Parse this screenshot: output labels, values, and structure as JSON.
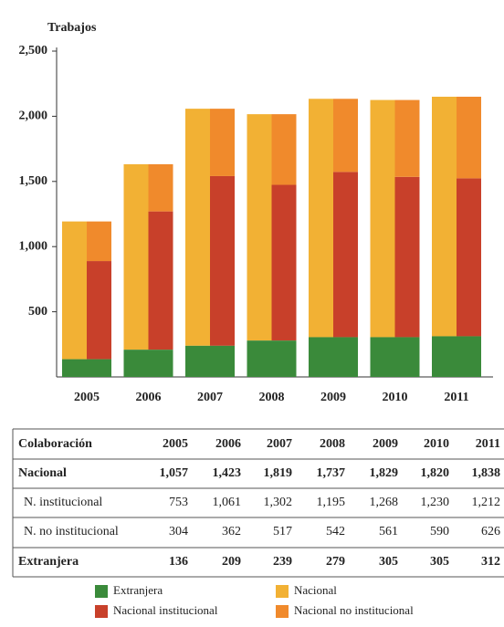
{
  "chart_data": {
    "type": "bar",
    "y_label": "Trabajos",
    "categories": [
      "2005",
      "2006",
      "2007",
      "2008",
      "2009",
      "2010",
      "2011"
    ],
    "series": [
      {
        "name": "Extranjera",
        "color": "#3a8a3a",
        "values": [
          136,
          209,
          239,
          279,
          305,
          305,
          312
        ]
      },
      {
        "name": "Nacional",
        "color": "#f2b134",
        "values": [
          1057,
          1423,
          1819,
          1737,
          1829,
          1820,
          1838
        ]
      },
      {
        "name": "Nacional institucional",
        "color": "#c8402a",
        "values": [
          753,
          1061,
          1302,
          1195,
          1268,
          1230,
          1212
        ]
      },
      {
        "name": "Nacional no institucional",
        "color": "#f08a2c",
        "values": [
          304,
          362,
          517,
          542,
          561,
          590,
          626
        ]
      }
    ],
    "ylim": [
      0,
      2500
    ],
    "yticks": [
      500,
      {
        "value": 1000,
        "label": "1,000"
      },
      {
        "value": 1500,
        "label": "1,500"
      },
      {
        "value": 2000,
        "label": "2,000"
      },
      {
        "value": 2500,
        "label": "2,500"
      }
    ]
  },
  "table": {
    "header": [
      "Colaboración",
      "2005",
      "2006",
      "2007",
      "2008",
      "2009",
      "2010",
      "2011"
    ],
    "rows": [
      [
        "Nacional",
        "1,057",
        "1,423",
        "1,819",
        "1,737",
        "1,829",
        "1,820",
        "1,838"
      ],
      [
        "N. institucional",
        "753",
        "1,061",
        "1,302",
        "1,195",
        "1,268",
        "1,230",
        "1,212"
      ],
      [
        "N. no institucional",
        "304",
        "362",
        "517",
        "542",
        "561",
        "590",
        "626"
      ],
      [
        "Extranjera",
        "136",
        "209",
        "239",
        "279",
        "305",
        "305",
        "312"
      ]
    ]
  }
}
